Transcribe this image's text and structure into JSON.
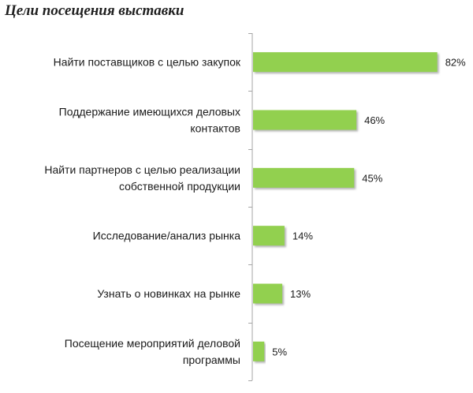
{
  "chart_data": {
    "type": "bar",
    "orientation": "horizontal",
    "title": "Цели посещения выставки",
    "categories": [
      [
        "Найти поставщиков с целью закупок"
      ],
      [
        "Поддержание имеющихся деловых",
        "контактов"
      ],
      [
        "Найти партнеров с целью реализации",
        "собственной продукции"
      ],
      [
        "Исследование/анализ рынка"
      ],
      [
        "Узнать о новинках на рынке"
      ],
      [
        "Посещение мероприятий деловой",
        "программы"
      ]
    ],
    "values": [
      82,
      46,
      45,
      14,
      13,
      5
    ],
    "value_labels": [
      "82%",
      "46%",
      "45%",
      "14%",
      "13%",
      "5%"
    ],
    "unit": "%",
    "xlim": [
      0,
      100
    ],
    "grid": false,
    "legend": "none",
    "colors": {
      "bar": "#92d050",
      "bar_shadow": "#a6a6a6",
      "axis": "#a6a6a6",
      "text": "#1a1a1a"
    }
  }
}
